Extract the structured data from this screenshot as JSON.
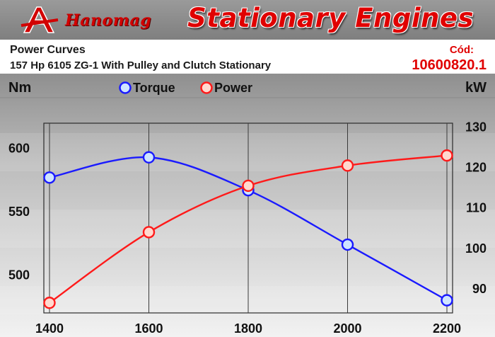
{
  "header": {
    "brand": "Hanomag",
    "title": "Stationary Engines"
  },
  "chart_data": {
    "type": "line",
    "title": "Power Curves",
    "subtitle": "157 Hp 6105 ZG-1 With Pulley and Clutch Stationary",
    "code_label": "Cód:",
    "code_value": "10600820.1",
    "xlabel": "",
    "y_left_label": "Nm",
    "y_right_label": "kW",
    "x": [
      1400,
      1600,
      1800,
      2000,
      2200
    ],
    "x_ticks": [
      "1400",
      "1600",
      "1800",
      "2000",
      "2200"
    ],
    "y_left_ticks": [
      "500",
      "550",
      "600"
    ],
    "y_right_ticks": [
      "90",
      "100",
      "110",
      "120",
      "130"
    ],
    "y_left_range": [
      470,
      620
    ],
    "y_right_range": [
      84,
      131
    ],
    "grid": "vertical",
    "legend_position": "top-center",
    "series": [
      {
        "name": "Torque",
        "axis": "left",
        "color": "#1a1aff",
        "values": [
          577,
          593,
          567,
          524,
          480
        ]
      },
      {
        "name": "Power",
        "axis": "right",
        "color": "#ff1a1a",
        "values": [
          86.5,
          104,
          115.5,
          120.5,
          123
        ]
      }
    ]
  }
}
